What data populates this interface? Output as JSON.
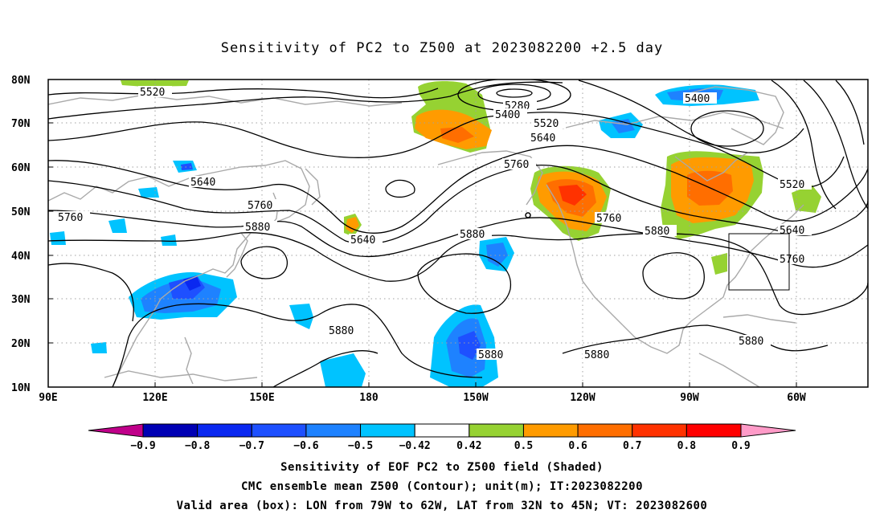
{
  "title": "Sensitivity of PC2 to Z500 at 2023082200 +2.5 day",
  "axes": {
    "lat_labels": [
      "80N",
      "70N",
      "60N",
      "50N",
      "40N",
      "30N",
      "20N",
      "10N"
    ],
    "lon_labels": [
      "90E",
      "120E",
      "150E",
      "180",
      "150W",
      "120W",
      "90W",
      "60W"
    ]
  },
  "contour_labels": {
    "c5520a": "5520",
    "c5280": "5280",
    "c5400a": "5400",
    "c5520b": "5520",
    "c5640a": "5640",
    "c5400b": "5400",
    "c5640b": "5640",
    "c5760a": "5760",
    "c5760b": "5760",
    "c5880a": "5880",
    "c5640c": "5640",
    "c5880b": "5880",
    "c5760c": "5760",
    "c5880c": "5880",
    "c5880d": "5880",
    "c5880e": "5880",
    "c5520c": "5520",
    "c5640d": "5640",
    "c5760d": "5760",
    "c5880f": "5880",
    "c5760e": "5760"
  },
  "colorbar": {
    "labels": [
      "-0.9",
      "-0.8",
      "-0.7",
      "-0.6",
      "-0.5",
      "-0.42",
      "0.42",
      "0.5",
      "0.6",
      "0.7",
      "0.8",
      "0.9"
    ],
    "colors": [
      "#c0008a",
      "#0000b4",
      "#0a28f0",
      "#1e50ff",
      "#1e82ff",
      "#00c3ff",
      "#ffffff",
      "#96d232",
      "#ff9b00",
      "#ff6e00",
      "#ff3200",
      "#ff0000",
      "#ff9bc8"
    ]
  },
  "captions": {
    "line1": "Sensitivity of EOF PC2 to Z500 field (Shaded)",
    "line2": "CMC ensemble mean Z500 (Contour); unit(m); IT:2023082200",
    "line3": "Valid area (box): LON from 79W to 62W, LAT from 32N to 45N; VT: 2023082600"
  }
}
